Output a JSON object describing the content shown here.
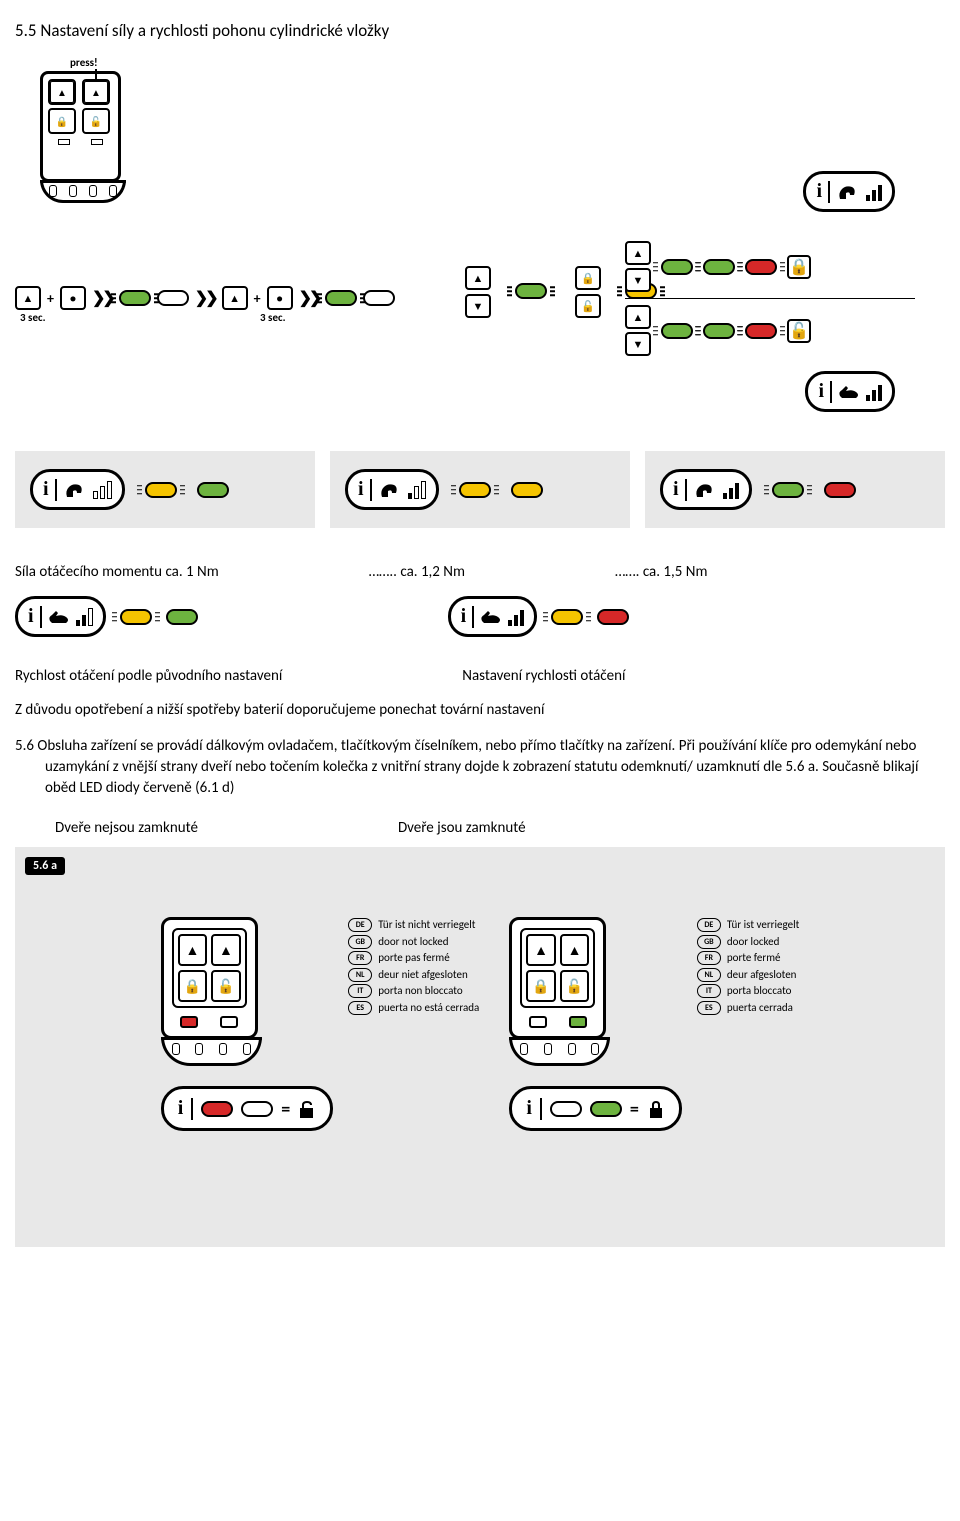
{
  "section_5_5": {
    "title": "5.5 Nastavení síly a rychlosti pohonu cylindrické vložky",
    "press_label": "press!",
    "seq_time": "3 sec.",
    "torque_label": "Síla otáčecího momentu ca. 1 Nm",
    "torque_12": "…….. ca. 1,2 Nm",
    "torque_15": "……. ca. 1,5 Nm",
    "speed_heading_1": "Rychlost otáčení podle původního nastavení",
    "speed_heading_2": "Nastavení  rychlosti otáčení",
    "battery_text": "Z důvodu opotřebení a nižší spotřeby baterií doporučujeme  ponechat tovární nastavení"
  },
  "section_5_6": {
    "text": "5.6 Obsluha zařízení se provádí dálkovým ovladačem, tlačítkovým číselníkem, nebo přímo tlačítky na zařízení. Při používání klíče pro odemykání nebo uzamykání z vnější strany dveří nebo točením kolečka z vnitřní strany dojde k zobrazení statutu odemknutí/ uzamknutí dle 5.6 a. Současně blikají oběd LED diody červeně (6.1 d)",
    "door_unlocked": "Dveře nejsou zamknuté",
    "door_locked": "Dveře jsou zamknuté",
    "tag": "5.6 a",
    "unlocked_list": [
      {
        "code": "DE",
        "text": "Tür ist nicht verriegelt"
      },
      {
        "code": "GB",
        "text": "door not locked"
      },
      {
        "code": "FR",
        "text": "porte pas fermé"
      },
      {
        "code": "NL",
        "text": "deur niet afgesloten"
      },
      {
        "code": "IT",
        "text": "porta non bloccato"
      },
      {
        "code": "ES",
        "text": "puerta no está cerrada"
      }
    ],
    "locked_list": [
      {
        "code": "DE",
        "text": "Tür ist verriegelt"
      },
      {
        "code": "GB",
        "text": "door locked"
      },
      {
        "code": "FR",
        "text": "porte fermé"
      },
      {
        "code": "NL",
        "text": "deur afgesloten"
      },
      {
        "code": "IT",
        "text": "porta bloccato"
      },
      {
        "code": "ES",
        "text": "puerta cerrada"
      }
    ]
  },
  "colors": {
    "green": "#6db33f",
    "yellow": "#f5c400",
    "red": "#d62828",
    "grey_bg": "#e8e8e8"
  }
}
